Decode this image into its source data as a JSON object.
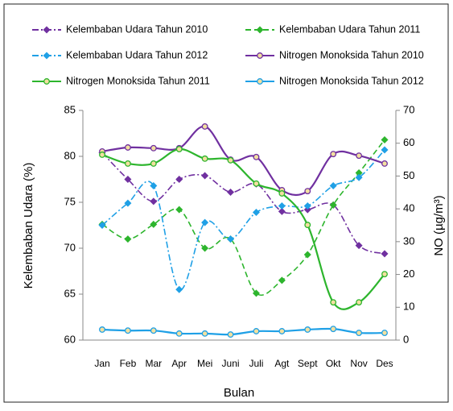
{
  "chart_data": {
    "type": "line",
    "x_label": "Bulan",
    "y_label": "Kelembaban Udara (%)",
    "y2_label": "NO (µg/m³)",
    "categories": [
      "Jan",
      "Feb",
      "Mar",
      "Apr",
      "Mei",
      "Juni",
      "Juli",
      "Agt",
      "Sept",
      "Okt",
      "Nov",
      "Des"
    ],
    "ylim": [
      60,
      85
    ],
    "yticks": [
      60,
      65,
      70,
      75,
      80,
      85
    ],
    "y2lim": [
      0,
      70
    ],
    "y2ticks": [
      0,
      10,
      20,
      30,
      40,
      50,
      60,
      70
    ],
    "series": [
      {
        "name": "Kelembaban Udara Tahun 2010",
        "color": "#7030a0",
        "dash": "dashdot",
        "marker": "diamond",
        "values": [
          80.4,
          77.5,
          75.1,
          77.5,
          77.9,
          76.1,
          77.0,
          74.0,
          74.2,
          74.7,
          70.3,
          69.4
        ]
      },
      {
        "name": "Kelembaban Udara Tahun 2011",
        "color": "#2db52d",
        "dash": "dashed",
        "marker": "diamond",
        "values": [
          72.6,
          71.0,
          72.6,
          74.2,
          70.0,
          71.0,
          65.1,
          66.5,
          69.3,
          74.7,
          78.2,
          81.8
        ]
      },
      {
        "name": "Kelembaban Udara Tahun 2012",
        "color": "#1fa0e6",
        "dash": "dashdot",
        "marker": "diamond",
        "values": [
          72.5,
          74.9,
          76.8,
          65.5,
          72.8,
          71.0,
          73.9,
          74.6,
          74.6,
          76.8,
          77.7,
          80.7
        ]
      },
      {
        "name": "Nitrogen Monoksida Tahun 2010",
        "color": "#7030a0",
        "dash": "solid",
        "marker": "circle",
        "axis": "y2",
        "values": [
          57.5,
          58.7,
          58.5,
          58.5,
          65.1,
          55.0,
          55.8,
          45.7,
          45.4,
          56.7,
          56.2,
          53.8
        ]
      },
      {
        "name": "Nitrogen Monoksida Tahun 2011",
        "color": "#2db52d",
        "dash": "solid",
        "marker": "circle",
        "axis": "y2",
        "values": [
          56.5,
          53.8,
          53.8,
          58.2,
          55.3,
          54.8,
          47.7,
          44.7,
          35.1,
          11.5,
          11.5,
          20.1
        ]
      },
      {
        "name": "Nitrogen Monoksida Tahun 2012",
        "color": "#1fa0e6",
        "dash": "solid",
        "marker": "circle",
        "axis": "y2",
        "values": [
          3.2,
          2.9,
          2.9,
          2.0,
          2.0,
          1.7,
          2.7,
          2.7,
          3.2,
          3.4,
          2.2,
          2.2
        ]
      }
    ]
  }
}
